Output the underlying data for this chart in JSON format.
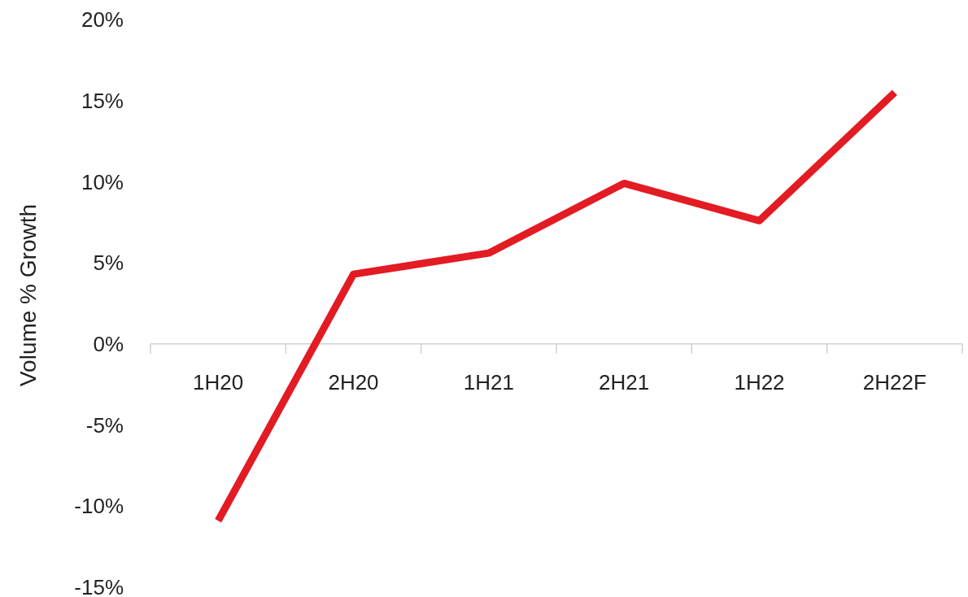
{
  "chart_data": {
    "type": "line",
    "ylabel": "Volume % Growth",
    "categories": [
      "1H20",
      "2H20",
      "1H21",
      "2H21",
      "1H22",
      "2H22F"
    ],
    "series": [
      {
        "color": "#e31b23",
        "values": [
          -10.9,
          4.3,
          5.6,
          9.9,
          7.6,
          15.5
        ]
      }
    ],
    "ylim": [
      -15,
      20
    ],
    "yticks": [
      {
        "value": -15,
        "label": "-15%"
      },
      {
        "value": -10,
        "label": "-10%"
      },
      {
        "value": -5,
        "label": "-5%"
      },
      {
        "value": 0,
        "label": "0%"
      },
      {
        "value": 5,
        "label": "5%"
      },
      {
        "value": 10,
        "label": "10%"
      },
      {
        "value": 15,
        "label": "15%"
      },
      {
        "value": 20,
        "label": "20%"
      }
    ],
    "grid": false,
    "marker": "none",
    "line_style": "solid"
  }
}
